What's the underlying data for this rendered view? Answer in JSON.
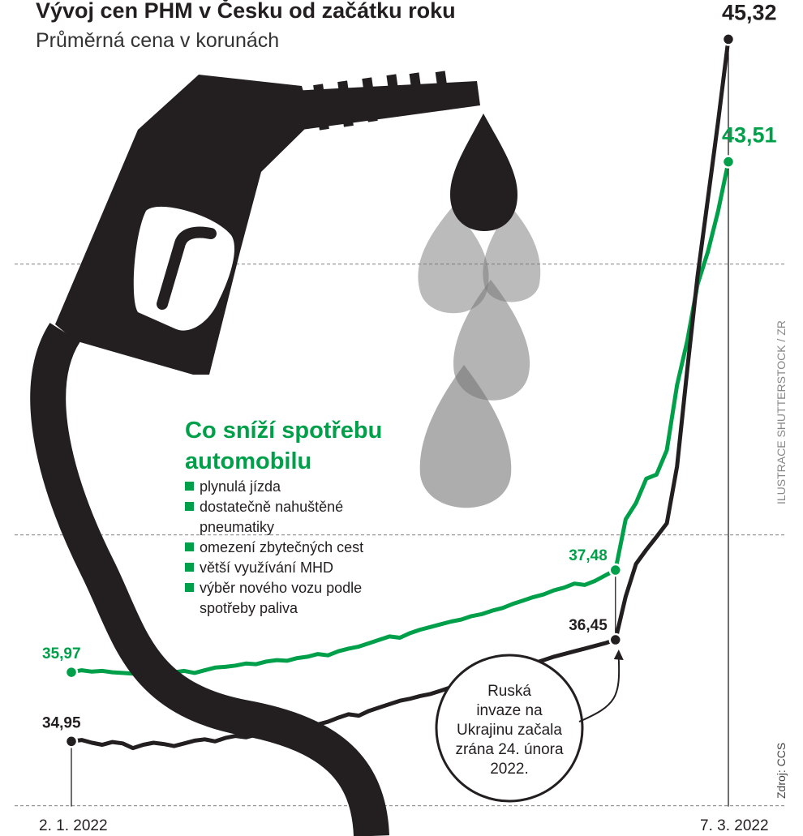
{
  "chart_data": {
    "type": "line",
    "title": "Vývoj cen PHM v Česku od začátku roku",
    "subtitle": "Průměrná cena v korunách",
    "categories": [
      "2. 1. 2022",
      null,
      null,
      null,
      null,
      null,
      null,
      null,
      null,
      null,
      null,
      null,
      null,
      null,
      null,
      null,
      null,
      null,
      null,
      null,
      null,
      null,
      null,
      null,
      null,
      null,
      null,
      null,
      null,
      null,
      null,
      null,
      null,
      null,
      null,
      null,
      null,
      null,
      null,
      null,
      null,
      null,
      null,
      null,
      null,
      null,
      null,
      null,
      null,
      null,
      null,
      null,
      null,
      null,
      null,
      null,
      null,
      null,
      null,
      null,
      null,
      null,
      null,
      null,
      "7. 3. 2022"
    ],
    "series": [
      {
        "color": "#00a04a",
        "values": [
          35.97,
          36.0,
          35.98,
          35.99,
          35.97,
          35.96,
          35.95,
          35.97,
          35.98,
          35.96,
          35.97,
          35.99,
          35.96,
          36.0,
          36.04,
          36.05,
          36.07,
          36.1,
          36.09,
          36.13,
          36.15,
          36.14,
          36.18,
          36.2,
          36.24,
          36.22,
          36.28,
          36.32,
          36.35,
          36.4,
          36.45,
          36.5,
          36.48,
          36.55,
          36.6,
          36.64,
          36.68,
          36.72,
          36.75,
          36.8,
          36.83,
          36.88,
          36.92,
          36.98,
          37.03,
          37.08,
          37.12,
          37.18,
          37.22,
          37.28,
          37.26,
          37.32,
          37.4,
          37.48,
          38.23,
          38.47,
          38.83,
          38.89,
          39.25,
          40.21,
          40.87,
          41.7,
          42.18,
          42.78,
          43.51
        ],
        "value_labels": [
          "35,97",
          null,
          null,
          null,
          null,
          null,
          null,
          null,
          null,
          null,
          null,
          null,
          null,
          null,
          null,
          null,
          null,
          null,
          null,
          null,
          null,
          null,
          null,
          null,
          null,
          null,
          null,
          null,
          null,
          null,
          null,
          null,
          null,
          null,
          null,
          null,
          null,
          null,
          null,
          null,
          null,
          null,
          null,
          null,
          null,
          null,
          null,
          null,
          null,
          null,
          null,
          null,
          null,
          "37,48",
          null,
          null,
          null,
          null,
          null,
          null,
          null,
          null,
          null,
          null,
          "43,51"
        ]
      },
      {
        "color": "#231f20",
        "values": [
          34.95,
          34.97,
          34.93,
          34.9,
          34.94,
          34.92,
          34.85,
          34.9,
          34.93,
          34.91,
          34.88,
          34.92,
          34.96,
          34.98,
          34.95,
          35.0,
          35.03,
          35.01,
          35.05,
          35.1,
          35.08,
          35.12,
          35.16,
          35.14,
          35.2,
          35.24,
          35.3,
          35.35,
          35.33,
          35.4,
          35.45,
          35.5,
          35.55,
          35.58,
          35.62,
          35.65,
          35.7,
          35.75,
          35.78,
          35.82,
          35.87,
          35.92,
          35.97,
          36.02,
          36.06,
          36.1,
          36.15,
          36.2,
          36.24,
          36.28,
          36.32,
          36.36,
          36.4,
          36.45,
          37.09,
          37.57,
          37.78,
          37.97,
          38.17,
          39.01,
          40.45,
          41.82,
          42.96,
          44.1,
          45.32
        ],
        "value_labels": [
          "34,95",
          null,
          null,
          null,
          null,
          null,
          null,
          null,
          null,
          null,
          null,
          null,
          null,
          null,
          null,
          null,
          null,
          null,
          null,
          null,
          null,
          null,
          null,
          null,
          null,
          null,
          null,
          null,
          null,
          null,
          null,
          null,
          null,
          null,
          null,
          null,
          null,
          null,
          null,
          null,
          null,
          null,
          null,
          null,
          null,
          null,
          null,
          null,
          null,
          null,
          null,
          null,
          null,
          "36,45",
          null,
          null,
          null,
          null,
          null,
          null,
          null,
          null,
          null,
          null,
          "45,32"
        ]
      }
    ],
    "ylim": [
      33.6,
      45.9
    ],
    "yticks": [
      34,
      38,
      42
    ],
    "grid": true,
    "annotation": [
      "Ruská",
      "invaze na",
      "Ukrajinu začala",
      "zrána 24. února",
      "2022."
    ]
  },
  "sidebar": {
    "title": [
      "Co sníží spotřebu",
      "automobilu"
    ],
    "items": [
      [
        "plynulá jízda"
      ],
      [
        "dostatečně nahuštěné",
        "pneumatiky"
      ],
      [
        "omezení zbytečných cest"
      ],
      [
        "větší využívání MHD"
      ],
      [
        "výběr nového vozu podle",
        "spotřeby paliva"
      ]
    ]
  },
  "credits": {
    "illustration": "ILUSTRACE SHUTTERSTOCK / ZR",
    "source": "Zdroj: CCS"
  }
}
